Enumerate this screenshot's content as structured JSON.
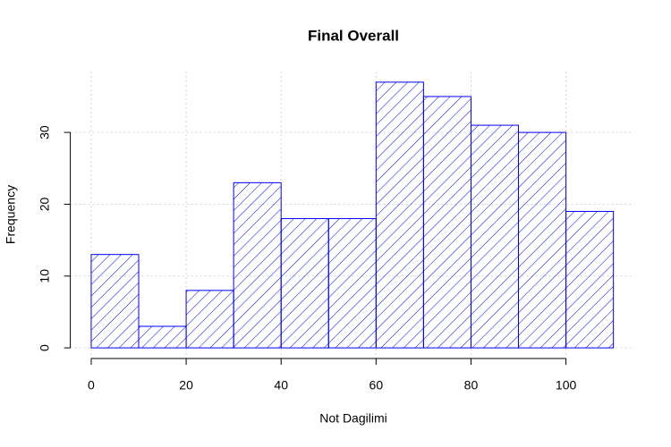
{
  "chart_data": {
    "type": "histogram",
    "title": "Final Overall",
    "xlabel": "Not Dagilimi",
    "ylabel": "Frequency",
    "bins": [
      0,
      10,
      20,
      30,
      40,
      50,
      60,
      70,
      80,
      90,
      100,
      110
    ],
    "values": [
      13,
      3,
      8,
      23,
      18,
      18,
      37,
      35,
      31,
      30,
      19
    ],
    "color": "#0000ff",
    "xlim": [
      -4.4,
      114.4
    ],
    "ylim": [
      -1.48,
      38.48
    ],
    "xticks": [
      0,
      20,
      40,
      60,
      80,
      100
    ],
    "yticks": [
      0,
      10,
      20,
      30
    ],
    "grid": true
  }
}
